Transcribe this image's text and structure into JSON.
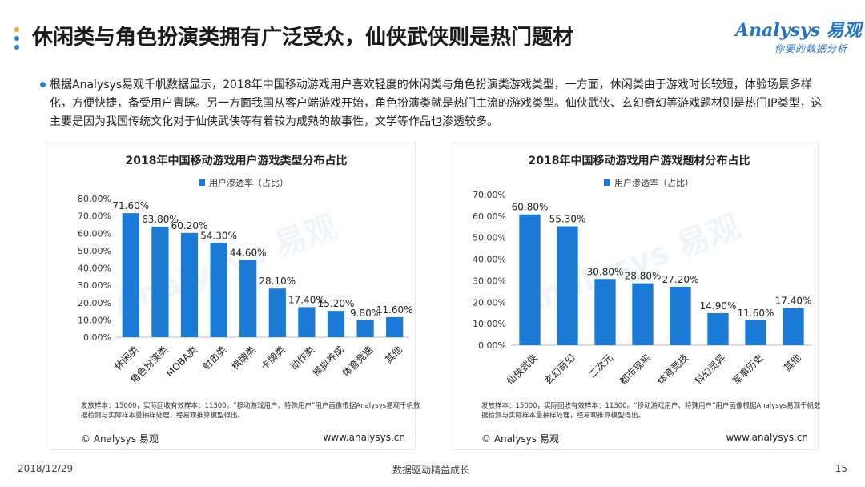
{
  "header": {
    "title": "休闲类与角色扮演类拥有广泛受众，仙侠武侠则是热门题材",
    "dot_colors": [
      "#f5a623",
      "#2b7fd0",
      "#2b7fd0"
    ]
  },
  "logo": {
    "main": "Analysys 易观",
    "sub": "你要的数据分析"
  },
  "bullet": {
    "text": "根据Analysys易观千帆数据显示，2018年中国移动游戏用户喜欢轻度的休闲类与角色扮演类游戏类型，一方面，休闲类由于游戏时长较短，体验场景多样化，方便快捷，备受用户青睐。另一方面我国从客户端游戏开始，角色扮演类就是热门主流的游戏类型。仙侠武侠、玄幻奇幻等游戏题材则是热门IP类型，这主要是因为我国传统文化对于仙侠武侠等有着较为成熟的故事性，文学等作品也渗透较多。"
  },
  "chart_data": [
    {
      "type": "bar",
      "title": "2018年中国移动游戏用户游戏类型分布占比",
      "categories": [
        "休闲类",
        "角色扮演类",
        "MOBA类",
        "射击类",
        "棋牌类",
        "卡牌类",
        "动作类",
        "模拟养成",
        "体育竞速",
        "其他"
      ],
      "series": [
        {
          "name": "用户渗透率（占比）",
          "values": [
            71.6,
            63.8,
            60.2,
            54.3,
            44.6,
            28.1,
            17.4,
            15.2,
            9.8,
            11.6
          ]
        }
      ],
      "data_labels": [
        "71.60%",
        "63.80%",
        "60.20%",
        "54.30%",
        "44.60%",
        "28.10%",
        "17.40%",
        "15.20%",
        "9.80%",
        "11.60%"
      ],
      "yticks": [
        "0.00%",
        "10.00%",
        "20.00%",
        "30.00%",
        "40.00%",
        "50.00%",
        "60.00%",
        "70.00%",
        "80.00%"
      ],
      "ylim": [
        0,
        80
      ],
      "legend": "top",
      "grid": false,
      "color": "#1b7ad6"
    },
    {
      "type": "bar",
      "title": "2018年中国移动游戏用户游戏题材分布占比",
      "categories": [
        "仙侠武侠",
        "玄幻奇幻",
        "二次元",
        "都市现实",
        "体育竞技",
        "科幻灵异",
        "军事历史",
        "其他"
      ],
      "series": [
        {
          "name": "用户渗透率（占比）",
          "values": [
            60.8,
            55.3,
            30.8,
            28.8,
            27.2,
            14.9,
            11.6,
            17.4
          ]
        }
      ],
      "data_labels": [
        "60.80%",
        "55.30%",
        "30.80%",
        "28.80%",
        "27.20%",
        "14.90%",
        "11.60%",
        "17.40%"
      ],
      "yticks": [
        "0.00%",
        "10.00%",
        "20.00%",
        "30.00%",
        "40.00%",
        "50.00%",
        "60.00%",
        "70.00%"
      ],
      "ylim": [
        0,
        70
      ],
      "legend": "top",
      "grid": false,
      "color": "#1b7ad6"
    }
  ],
  "panels": [
    {
      "footnote": "发放样本：15000，实际回收有效样本：11300。“移动游戏用户、特殊用户”用户画像根据Analysys易观千帆数据检测与实际样本量抽样处理，经易观推算模型得出。",
      "copyright": "© Analysys 易观",
      "website": "www.analysys.cn"
    },
    {
      "footnote": "发放样本：15000，实际回收有效样本：11300。“移动游戏用户、特殊用户”用户画像根据Analysys易观千帆数据检测与实际样本量抽样处理，经易观推算模型得出。",
      "copyright": "© Analysys 易观",
      "website": "www.analysys.cn"
    }
  ],
  "footer": {
    "date": "2018/12/29",
    "slogan": "数据驱动精益成长",
    "page": "15"
  }
}
